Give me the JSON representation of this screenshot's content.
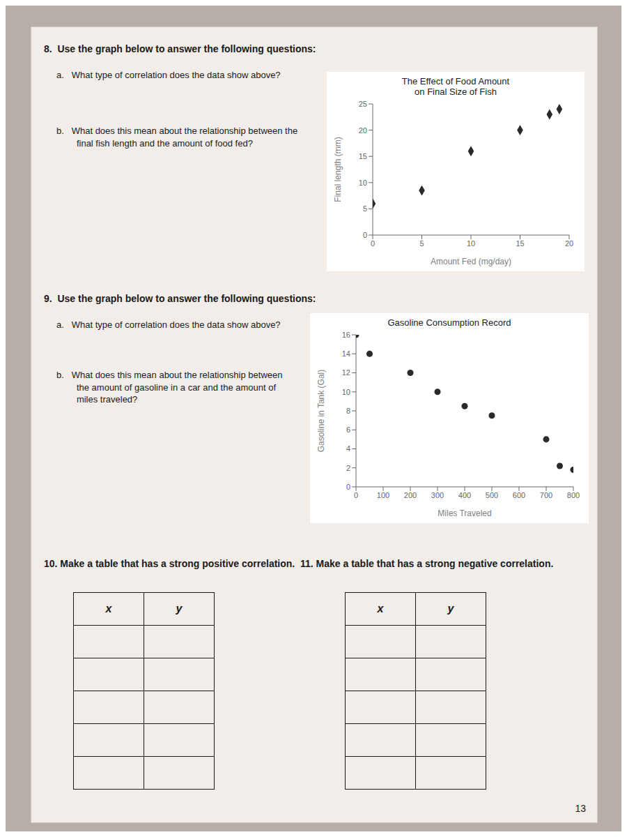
{
  "chart_data": [
    {
      "type": "scatter",
      "title": "The Effect of Food Amount\non Final Size of Fish",
      "x_label": "Amount Fed (mg/day)",
      "y_label": "Final length (mm)",
      "x": [
        0,
        5,
        10,
        15,
        18,
        19
      ],
      "values": [
        6,
        8.5,
        16,
        20,
        23,
        24
      ],
      "xlim": [
        0,
        20
      ],
      "ylim": [
        0,
        25
      ],
      "xticks": [
        0,
        5,
        10,
        15,
        20
      ],
      "yticks": [
        0,
        5,
        10,
        15,
        20,
        25
      ],
      "grid": false,
      "color": "#2a2a2a",
      "marker": "diamond"
    },
    {
      "type": "scatter",
      "title": "Gasoline Consumption Record",
      "x_label": "Miles Traveled",
      "y_label": "Gasoline in Tank (Gal)",
      "x": [
        0,
        50,
        200,
        300,
        400,
        500,
        700,
        750,
        800
      ],
      "values": [
        16,
        14,
        12,
        10,
        8.5,
        7.5,
        5,
        2.2,
        1.8
      ],
      "xlim": [
        0,
        800
      ],
      "ylim": [
        0,
        16
      ],
      "xticks": [
        0,
        100,
        200,
        300,
        400,
        500,
        600,
        700,
        800
      ],
      "yticks": [
        0,
        2,
        4,
        6,
        8,
        10,
        12,
        14,
        16
      ],
      "grid": false,
      "color": "#2a2a2a",
      "marker": "circle"
    }
  ],
  "annotations": [
    "8.  Use the graph below to answer the following questions:",
    "a.   What type of correlation does the data show above?",
    "b.   What does this mean about the relationship between the\n        final fish length and the amount of food fed?",
    "9.  Use the graph below to answer the following questions:",
    "a.   What type of correlation does the data show above?",
    "b.   What does this mean about the relationship between\n        the amount of gasoline in a car and the amount of\n        miles traveled?",
    "10. Make a table that has a strong positive correlation.  11. Make a table that has a strong negative correlation.",
    "x",
    "y",
    "13"
  ]
}
